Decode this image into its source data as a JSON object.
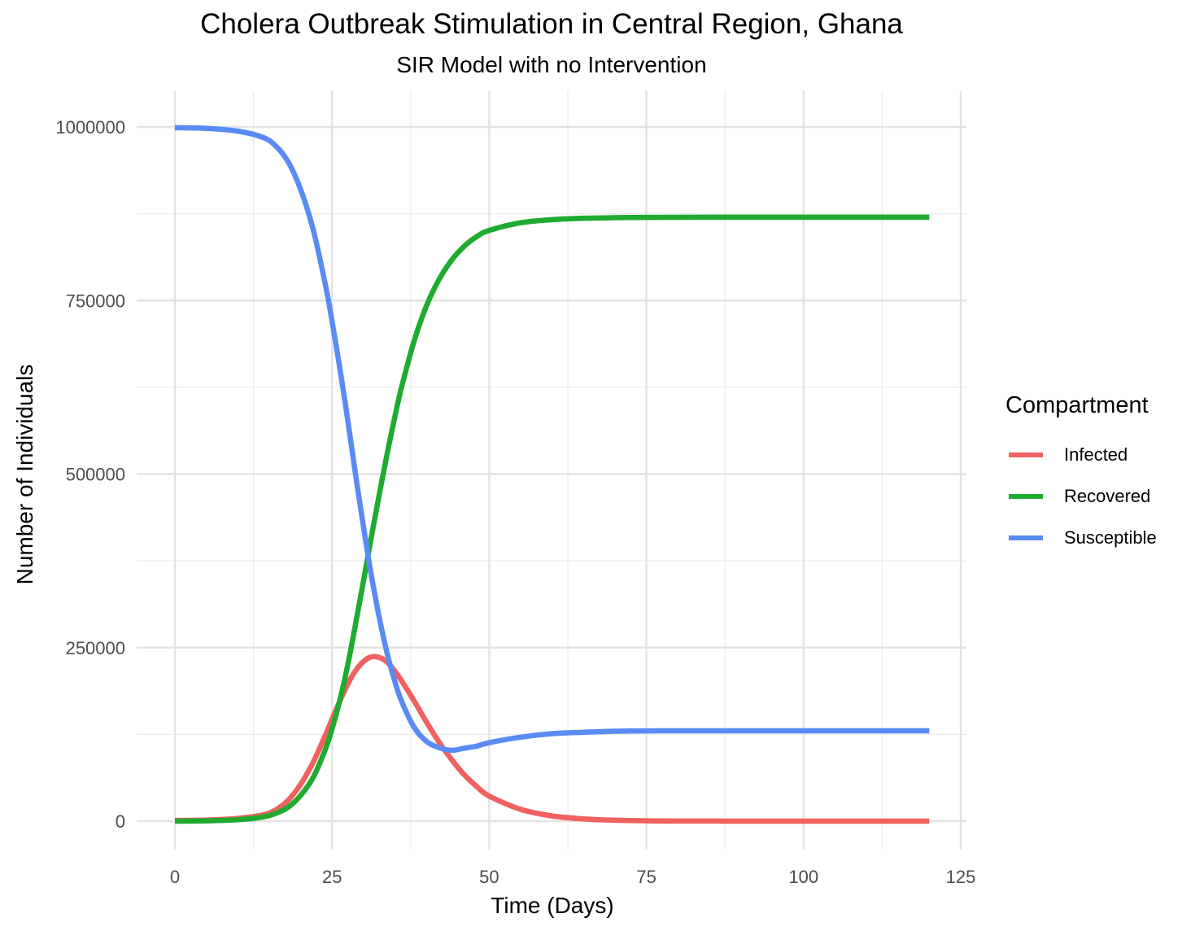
{
  "chart_data": {
    "type": "line",
    "title": "Cholera Outbreak Stimulation in Central Region, Ghana",
    "subtitle": "SIR Model with no Intervention",
    "xlabel": "Time (Days)",
    "ylabel": "Number of Individuals",
    "xlim": [
      -6,
      125
    ],
    "ylim": [
      -40000,
      1060000
    ],
    "x_ticks": [
      0,
      25,
      50,
      75,
      100,
      125
    ],
    "y_ticks": [
      0,
      250000,
      500000,
      750000,
      1000000
    ],
    "x_tick_labels": [
      "0",
      "25",
      "50",
      "75",
      "100",
      "125"
    ],
    "y_tick_labels": [
      "0",
      "250000",
      "500000",
      "750000",
      "1000000"
    ],
    "grid": true,
    "legend": {
      "title": "Compartment",
      "position": "right"
    },
    "x": [
      0,
      5,
      10,
      14,
      16,
      18,
      20,
      22,
      24,
      25,
      26,
      27,
      28,
      29,
      30,
      31,
      32,
      33,
      34,
      35,
      36,
      38,
      40,
      42,
      44,
      46,
      48,
      50,
      55,
      60,
      65,
      70,
      75,
      80,
      90,
      100,
      110,
      120
    ],
    "series": [
      {
        "name": "Infected",
        "color": "#F0615F",
        "values": [
          1000,
          1600,
          4000,
          9000,
          16000,
          30000,
          53000,
          85000,
          125000,
          147000,
          168000,
          188000,
          206000,
          220000,
          230000,
          236000,
          237000,
          234000,
          227000,
          216000,
          203000,
          174000,
          143000,
          114000,
          89000,
          67000,
          50000,
          36000,
          17000,
          7500,
          3200,
          1300,
          500,
          200,
          40,
          10,
          3,
          1
        ]
      },
      {
        "name": "Recovered",
        "color": "#1FAB2F",
        "values": [
          0,
          400,
          2000,
          6000,
          11000,
          20000,
          37000,
          63000,
          105000,
          133000,
          166000,
          204000,
          248000,
          297000,
          346000,
          397000,
          446000,
          494000,
          540000,
          583000,
          623000,
          690000,
          742000,
          780000,
          808000,
          828000,
          842000,
          851000,
          862000,
          866500,
          868500,
          869300,
          869700,
          869900,
          870000,
          870000,
          870000,
          870000
        ]
      },
      {
        "name": "Susceptible",
        "color": "#5A8BF4",
        "values": [
          999000,
          998000,
          994000,
          985000,
          973000,
          950000,
          910000,
          852000,
          770000,
          720000,
          666000,
          608000,
          546000,
          483000,
          424000,
          367000,
          317000,
          272000,
          233000,
          201000,
          174000,
          136000,
          115000,
          106000,
          102000,
          105000,
          108000,
          113000,
          121000,
          126000,
          128000,
          129500,
          130000,
          130100,
          130100,
          130100,
          130100,
          130100
        ]
      }
    ]
  }
}
